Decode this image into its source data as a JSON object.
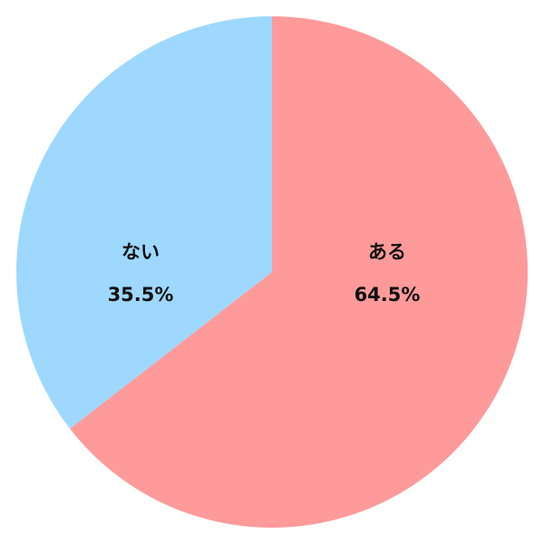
{
  "chart_data": {
    "type": "pie",
    "title": "",
    "start": "top",
    "direction": "clockwise",
    "slices": [
      {
        "label": "ある",
        "value": 64.5,
        "display": "64.5%",
        "color": "#FF9A9A"
      },
      {
        "label": "ない",
        "value": 35.5,
        "display": "35.5%",
        "color": "#9ED8FF"
      }
    ],
    "legend": "none"
  }
}
